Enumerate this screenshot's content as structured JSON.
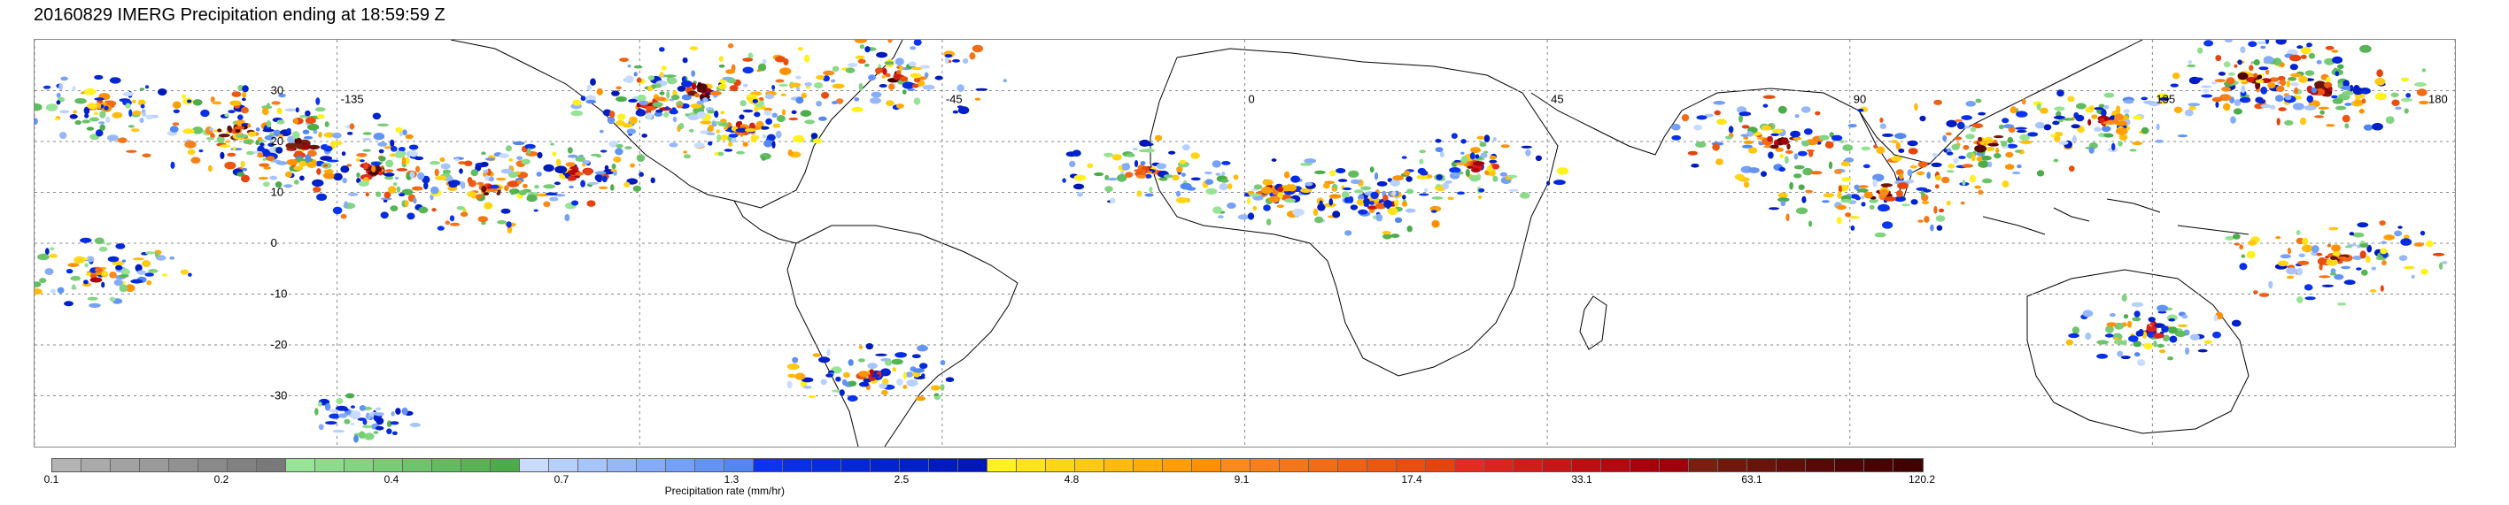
{
  "title": "20160829 IMERG Precipitation ending at 18:59:59 Z",
  "map": {
    "projection": "equirectangular",
    "lon_range": [
      -180,
      180
    ],
    "lat_range": [
      -40,
      40
    ],
    "lon_labels": [
      "-135",
      "-45",
      "0",
      "45",
      "90",
      "135",
      "180"
    ],
    "lat_labels": [
      "30",
      "20",
      "10",
      "0",
      "-10",
      "-20",
      "-30"
    ],
    "gridlines": "dotted"
  },
  "colorbar": {
    "label": "Precipitation rate (mm/hr)",
    "tick_labels": [
      "0.1",
      "0.2",
      "0.4",
      "0.7",
      "1.3",
      "2.5",
      "4.8",
      "9.1",
      "17.4",
      "33.1",
      "63.1",
      "120.2"
    ],
    "groups": [
      {
        "colors": [
          "#b4b4b4",
          "#aaaaaa",
          "#a2a2a2",
          "#9a9a9a",
          "#919191",
          "#898989",
          "#818181",
          "#797979"
        ]
      },
      {
        "colors": [
          "#98e497",
          "#8ddc8c",
          "#82d481",
          "#77cc76",
          "#6cc46b",
          "#61bc60",
          "#56b455",
          "#4bac4a"
        ]
      },
      {
        "colors": [
          "#c9dcff",
          "#b8d0fe",
          "#a7c4fc",
          "#96b8fa",
          "#85acf8",
          "#74a0f6",
          "#6394f4",
          "#5288f2"
        ]
      },
      {
        "colors": [
          "#0a34f0",
          "#0830e8",
          "#062ce0",
          "#0428d8",
          "#0224d0",
          "#0020c8",
          "#001cc0",
          "#0018b8"
        ]
      },
      {
        "colors": [
          "#fff21e",
          "#ffe41a",
          "#ffd616",
          "#ffc812",
          "#ffba0e",
          "#ffac0a",
          "#ff9e06",
          "#ff9002"
        ]
      },
      {
        "colors": [
          "#fb8a1c",
          "#f8801a",
          "#f57618",
          "#f26c16",
          "#ef6214",
          "#ec5812",
          "#e94e10",
          "#e6440e"
        ]
      },
      {
        "colors": [
          "#e52b1e",
          "#db241b",
          "#d11d18",
          "#c71615",
          "#bd0f12",
          "#b3080f",
          "#a9010c",
          "#9f0009"
        ]
      },
      {
        "colors": [
          "#7a1f10",
          "#72190e",
          "#6a130c",
          "#620d0a",
          "#5a0708",
          "#520306",
          "#4a0104",
          "#420002"
        ]
      }
    ]
  },
  "precip_cells": [
    {
      "lon": -170,
      "lat": 27,
      "intensity": 2
    },
    {
      "lon": -150,
      "lat": 22,
      "intensity": 3
    },
    {
      "lon": -140,
      "lat": 19,
      "intensity": 3
    },
    {
      "lon": -130,
      "lat": 14,
      "intensity": 3
    },
    {
      "lon": -112,
      "lat": 11,
      "intensity": 3
    },
    {
      "lon": -100,
      "lat": 14,
      "intensity": 2
    },
    {
      "lon": -88,
      "lat": 27,
      "intensity": 2
    },
    {
      "lon": -80,
      "lat": 30,
      "intensity": 3
    },
    {
      "lon": -75,
      "lat": 22,
      "intensity": 2
    },
    {
      "lon": -52,
      "lat": 33,
      "intensity": 3
    },
    {
      "lon": -15,
      "lat": 14,
      "intensity": 2
    },
    {
      "lon": 5,
      "lat": 10,
      "intensity": 2
    },
    {
      "lon": 20,
      "lat": 8,
      "intensity": 2
    },
    {
      "lon": 35,
      "lat": 15,
      "intensity": 2
    },
    {
      "lon": 80,
      "lat": 20,
      "intensity": 3
    },
    {
      "lon": 95,
      "lat": 10,
      "intensity": 3
    },
    {
      "lon": 110,
      "lat": 20,
      "intensity": 3
    },
    {
      "lon": 128,
      "lat": 24,
      "intensity": 2
    },
    {
      "lon": 160,
      "lat": 30,
      "intensity": 3
    },
    {
      "lon": 162,
      "lat": -3,
      "intensity": 3
    },
    {
      "lon": 150,
      "lat": 32,
      "intensity": 3
    },
    {
      "lon": -170,
      "lat": -6,
      "intensity": 2
    },
    {
      "lon": -130,
      "lat": -34,
      "intensity": 1
    },
    {
      "lon": -55,
      "lat": -26,
      "intensity": 2
    },
    {
      "lon": 135,
      "lat": -17,
      "intensity": 2
    }
  ]
}
